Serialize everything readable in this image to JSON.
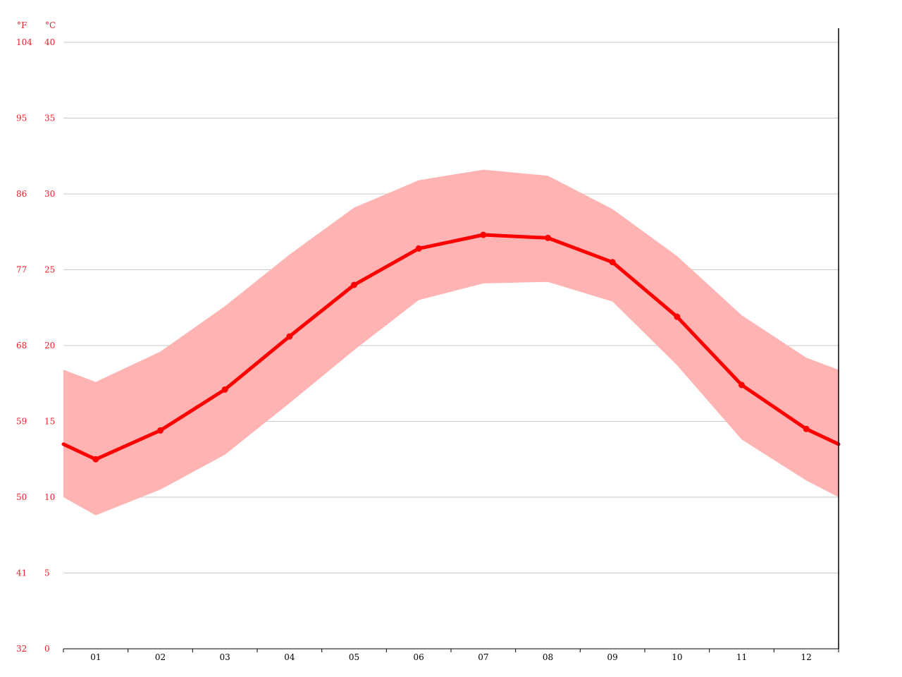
{
  "chart_data": {
    "type": "line",
    "title": "",
    "xlabel": "",
    "ylabel": "",
    "units": {
      "fahrenheit": "°F",
      "celsius": "°C"
    },
    "categories": [
      "01",
      "02",
      "03",
      "04",
      "05",
      "06",
      "07",
      "08",
      "09",
      "10",
      "11",
      "12"
    ],
    "y_ticks_c": [
      "0",
      "5",
      "10",
      "15",
      "20",
      "25",
      "30",
      "35",
      "40"
    ],
    "y_ticks_f": [
      "32",
      "41",
      "50",
      "59",
      "68",
      "77",
      "86",
      "95",
      "104"
    ],
    "ylim_c": [
      0,
      40
    ],
    "grid": true,
    "series": [
      {
        "role": "mean",
        "values": [
          12.5,
          14.4,
          17.1,
          20.6,
          24.0,
          26.4,
          27.3,
          27.1,
          25.5,
          21.9,
          17.4,
          14.5
        ]
      },
      {
        "role": "max",
        "values": [
          17.6,
          19.6,
          22.6,
          26.0,
          29.1,
          30.9,
          31.6,
          31.2,
          29.0,
          25.9,
          22.0,
          19.2
        ]
      },
      {
        "role": "min",
        "values": [
          8.8,
          10.5,
          12.8,
          16.2,
          19.7,
          23.0,
          24.1,
          24.2,
          22.9,
          18.7,
          13.8,
          11.1
        ]
      }
    ],
    "edge_values": {
      "mean": [
        13.5,
        13.5
      ],
      "max": [
        18.4,
        18.4
      ],
      "min": [
        10.0,
        10.0
      ]
    },
    "colors": {
      "mean_line": "#ff0000",
      "range_band": "#ffb3b3",
      "tick_labels_y": "#e8202a",
      "grid": "#c8c8c8"
    }
  }
}
